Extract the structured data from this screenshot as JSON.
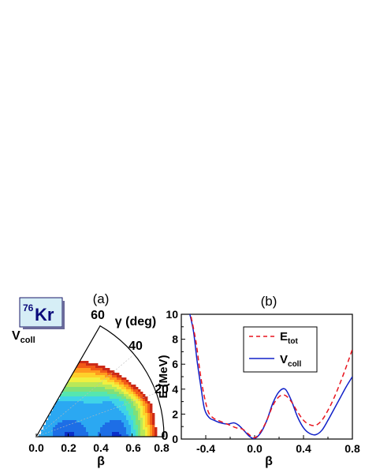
{
  "panels": {
    "a": {
      "label": "(a)",
      "nucleus_mass": "76",
      "nucleus_symbol": "Kr",
      "quantity_main": "V",
      "quantity_sub": "coll",
      "gamma_title": "γ (deg)",
      "beta_label": "β",
      "gamma_ticks": [
        "60",
        "40",
        "20",
        "0"
      ],
      "beta_ticks": [
        "0.0",
        "0.2",
        "0.4",
        "0.6",
        "0.8"
      ],
      "colors": {
        "box_fill": "#d6eef6",
        "box_text": "#0a0a7a",
        "contour_low": "#1a3fcf",
        "contour_high": "#b3141d"
      }
    },
    "b": {
      "label": "(b)",
      "xlabel": "β",
      "ylabel": "E (MeV)",
      "legend": [
        {
          "main": "E",
          "sub": "tot"
        },
        {
          "main": "V",
          "sub": "coll"
        }
      ]
    }
  },
  "chart_data": [
    {
      "type": "heatmap",
      "coordinates": "beta-gamma polar plane",
      "beta_range": [
        0,
        0.8
      ],
      "gamma_range_deg": [
        0,
        60
      ],
      "minima": [
        {
          "beta": 0.2,
          "gamma": 5
        },
        {
          "beta": 0.5,
          "gamma": 2
        }
      ],
      "contour_colors": [
        "#0b2fc9",
        "#1d6ee6",
        "#2ba8f2",
        "#3fd3e8",
        "#55e6b0",
        "#7fe07a",
        "#b9e858",
        "#f0f040",
        "#ffd02a",
        "#ff9a1e",
        "#f25a18",
        "#cc2a18"
      ]
    },
    {
      "type": "line",
      "xlim": [
        -0.6,
        0.8
      ],
      "ylim": [
        0,
        10
      ],
      "xticks": [
        "-0.4",
        "0.0",
        "0.4",
        "0.8"
      ],
      "yticks": [
        "0",
        "2",
        "4",
        "6",
        "8",
        "10"
      ],
      "series": [
        {
          "name": "E_tot",
          "color": "#e8141e",
          "dash": "dashed",
          "x": [
            -0.52,
            -0.48,
            -0.45,
            -0.42,
            -0.38,
            -0.34,
            -0.3,
            -0.25,
            -0.2,
            -0.15,
            -0.1,
            -0.05,
            0.0,
            0.05,
            0.1,
            0.15,
            0.2,
            0.25,
            0.3,
            0.35,
            0.4,
            0.45,
            0.5,
            0.55,
            0.6,
            0.65,
            0.7,
            0.75,
            0.8
          ],
          "y": [
            9.8,
            7.8,
            5.6,
            3.8,
            2.2,
            1.7,
            1.5,
            1.3,
            1.1,
            0.9,
            0.8,
            0.4,
            0.1,
            0.6,
            1.5,
            2.7,
            3.4,
            3.5,
            3.0,
            2.2,
            1.5,
            1.15,
            1.1,
            1.5,
            2.3,
            3.3,
            4.5,
            5.8,
            7.2
          ]
        },
        {
          "name": "V_coll",
          "color": "#1020c8",
          "dash": "solid",
          "x": [
            -0.53,
            -0.5,
            -0.47,
            -0.44,
            -0.41,
            -0.37,
            -0.33,
            -0.28,
            -0.22,
            -0.17,
            -0.13,
            -0.08,
            -0.04,
            0.0,
            0.05,
            0.1,
            0.15,
            0.2,
            0.25,
            0.3,
            0.35,
            0.4,
            0.45,
            0.5,
            0.55,
            0.6,
            0.65,
            0.7,
            0.75,
            0.8
          ],
          "y": [
            10.0,
            8.6,
            6.2,
            4.2,
            2.4,
            1.7,
            1.5,
            1.3,
            1.2,
            1.3,
            1.1,
            0.6,
            0.2,
            0.05,
            0.5,
            1.5,
            2.9,
            3.8,
            4.0,
            3.1,
            1.8,
            0.9,
            0.45,
            0.35,
            0.7,
            1.5,
            2.4,
            3.3,
            4.2,
            5.0
          ]
        }
      ]
    }
  ]
}
